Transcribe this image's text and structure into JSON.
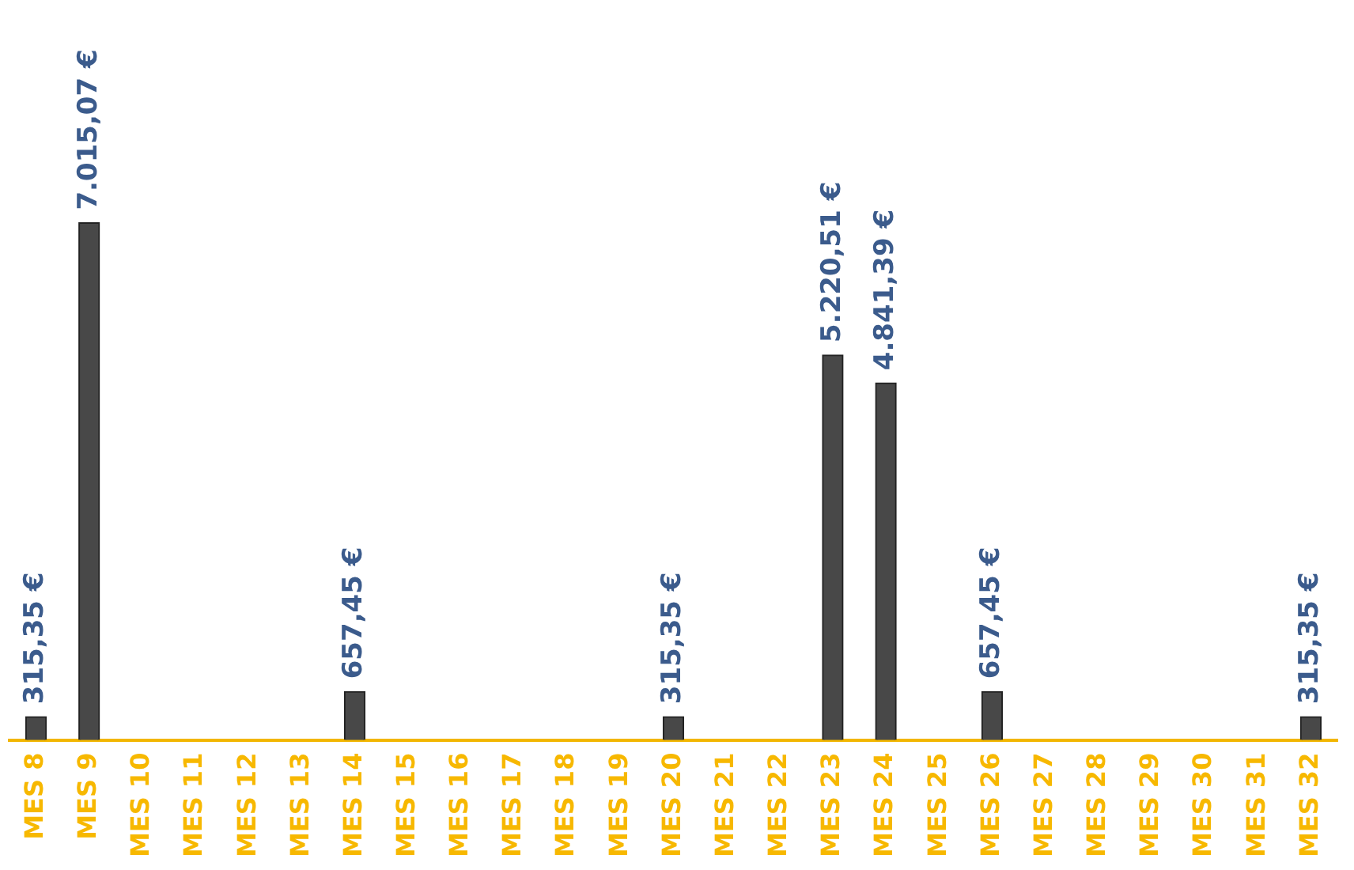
{
  "chart_data": {
    "type": "bar",
    "categories": [
      "MES 8",
      "MES 9",
      "MES 10",
      "MES 11",
      "MES 12",
      "MES 13",
      "MES 14",
      "MES 15",
      "MES 16",
      "MES 17",
      "MES 18",
      "MES 19",
      "MES 20",
      "MES 21",
      "MES 22",
      "MES 23",
      "MES 24",
      "MES 25",
      "MES 26",
      "MES 27",
      "MES 28",
      "MES 29",
      "MES 30",
      "MES 31",
      "MES 32"
    ],
    "values": [
      315.35,
      7015.07,
      null,
      null,
      null,
      null,
      657.45,
      null,
      null,
      null,
      null,
      null,
      315.35,
      null,
      null,
      5220.51,
      4841.39,
      null,
      657.45,
      null,
      null,
      null,
      null,
      null,
      315.35
    ],
    "value_labels": [
      "315,35 €",
      "7.015,07 €",
      null,
      null,
      null,
      null,
      "657,45 €",
      null,
      null,
      null,
      null,
      null,
      "315,35 €",
      null,
      null,
      "5.220,51 €",
      "4.841,39 €",
      null,
      "657,45 €",
      null,
      null,
      null,
      null,
      null,
      "315,35 €"
    ],
    "color": "#484848",
    "grid": false,
    "legend": false
  }
}
